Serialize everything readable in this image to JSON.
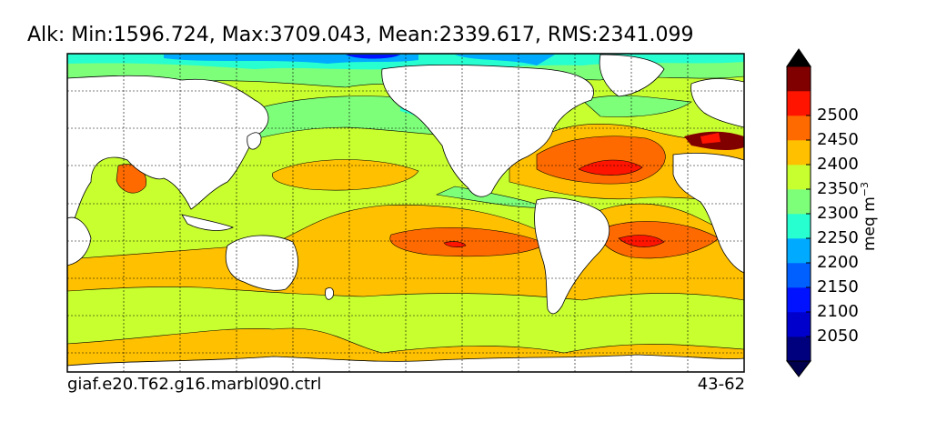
{
  "title": "Alk: Min:1596.724, Max:3709.043, Mean:2339.617, RMS:2341.099",
  "run_label": "giaf.e20.T62.g16.marbl090.ctrl",
  "years_label": "43-62",
  "colorbar": {
    "label": "meq m",
    "label_exponent": "−3",
    "levels": [
      2000,
      2025,
      2050,
      2075,
      2100,
      2125,
      2150,
      2175,
      2200,
      2225,
      2250,
      2275,
      2300,
      2325,
      2350,
      2375,
      2400,
      2425,
      2450,
      2475,
      2500,
      2525
    ],
    "bands": [
      {
        "color": "#00007f"
      },
      {
        "color": "#0000cc"
      },
      {
        "color": "#0012ff"
      },
      {
        "color": "#0060ff"
      },
      {
        "color": "#00aaff"
      },
      {
        "color": "#27ffd0"
      },
      {
        "color": "#7dff7a"
      },
      {
        "color": "#c8ff2f"
      },
      {
        "color": "#ffc000"
      },
      {
        "color": "#ff6a00"
      },
      {
        "color": "#ff1400"
      },
      {
        "color": "#800000"
      }
    ],
    "ticks": [
      "2050",
      "2100",
      "2150",
      "2200",
      "2250",
      "2300",
      "2350",
      "2400",
      "2450",
      "2500"
    ],
    "extend_low_color": "#00004c",
    "extend_high_color": "#000000"
  },
  "map": {
    "projection": "cylindrical",
    "lon_range": [
      20,
      380
    ],
    "lat_range": [
      -80,
      90
    ],
    "gridlines_dashed": true
  }
}
